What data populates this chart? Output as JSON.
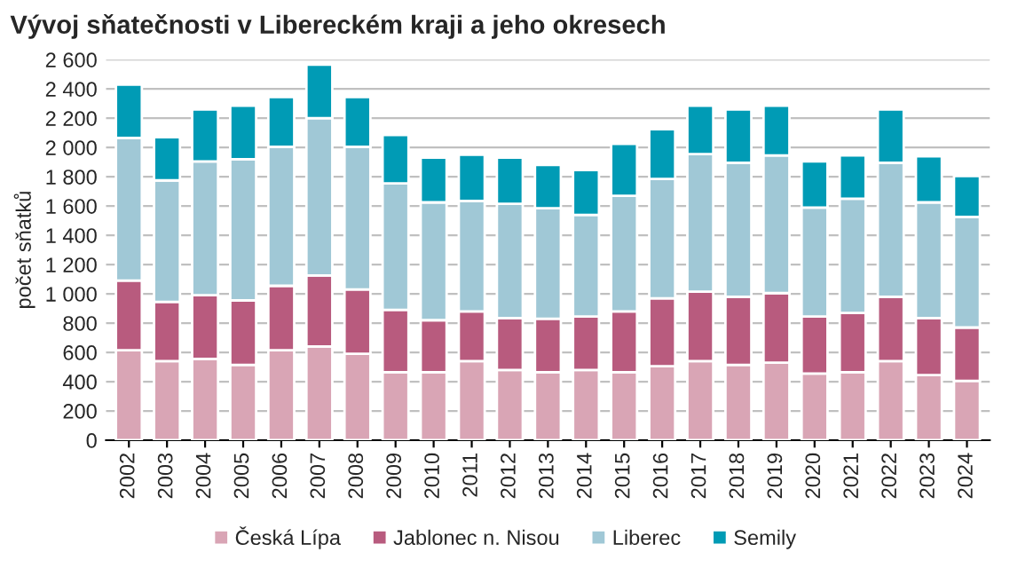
{
  "chart_data": {
    "type": "bar",
    "stacked": true,
    "title": "Vývoj sňatečnosti v Libereckém kraji a jeho okresech",
    "ylabel": "počet sňatků",
    "categories": [
      "2002",
      "2003",
      "2004",
      "2005",
      "2006",
      "2007",
      "2008",
      "2009",
      "2010",
      "2011",
      "2012",
      "2013",
      "2014",
      "2015",
      "2016",
      "2017",
      "2018",
      "2019",
      "2020",
      "2021",
      "2022",
      "2023",
      "2024"
    ],
    "series": [
      {
        "name": "Česká Lípa",
        "color": "#d9a5b5",
        "values": [
          615,
          540,
          555,
          515,
          615,
          640,
          590,
          465,
          465,
          540,
          480,
          465,
          480,
          465,
          505,
          540,
          515,
          530,
          455,
          465,
          540,
          445,
          405
        ]
      },
      {
        "name": "Jablonec n. Nisou",
        "color": "#b85b7e",
        "values": [
          475,
          405,
          435,
          440,
          440,
          485,
          440,
          425,
          355,
          340,
          355,
          365,
          365,
          415,
          465,
          475,
          465,
          475,
          390,
          405,
          440,
          390,
          365
        ]
      },
      {
        "name": "Liberec",
        "color": "#a0c8d6",
        "values": [
          975,
          830,
          915,
          965,
          950,
          1075,
          975,
          865,
          805,
          755,
          780,
          755,
          695,
          790,
          815,
          940,
          915,
          940,
          745,
          780,
          915,
          790,
          755
        ]
      },
      {
        "name": "Semily",
        "color": "#009bb5",
        "values": [
          365,
          295,
          355,
          365,
          340,
          365,
          340,
          330,
          305,
          315,
          315,
          295,
          305,
          355,
          340,
          330,
          365,
          340,
          315,
          295,
          365,
          315,
          280
        ]
      }
    ],
    "ylim": [
      0,
      2600
    ],
    "yticks": [
      0,
      200,
      400,
      600,
      800,
      {
        "value": 1000,
        "label": "1 000"
      },
      {
        "value": 1200,
        "label": "1 200"
      },
      {
        "value": 1400,
        "label": "1 400"
      },
      {
        "value": 1600,
        "label": "1 600"
      },
      {
        "value": 1800,
        "label": "1 800"
      },
      {
        "value": 2000,
        "label": "2 000"
      },
      {
        "value": 2200,
        "label": "2 200"
      },
      {
        "value": 2400,
        "label": "2 400"
      },
      {
        "value": 2600,
        "label": "2 600"
      }
    ],
    "grid": "y",
    "legend": "bottom"
  }
}
